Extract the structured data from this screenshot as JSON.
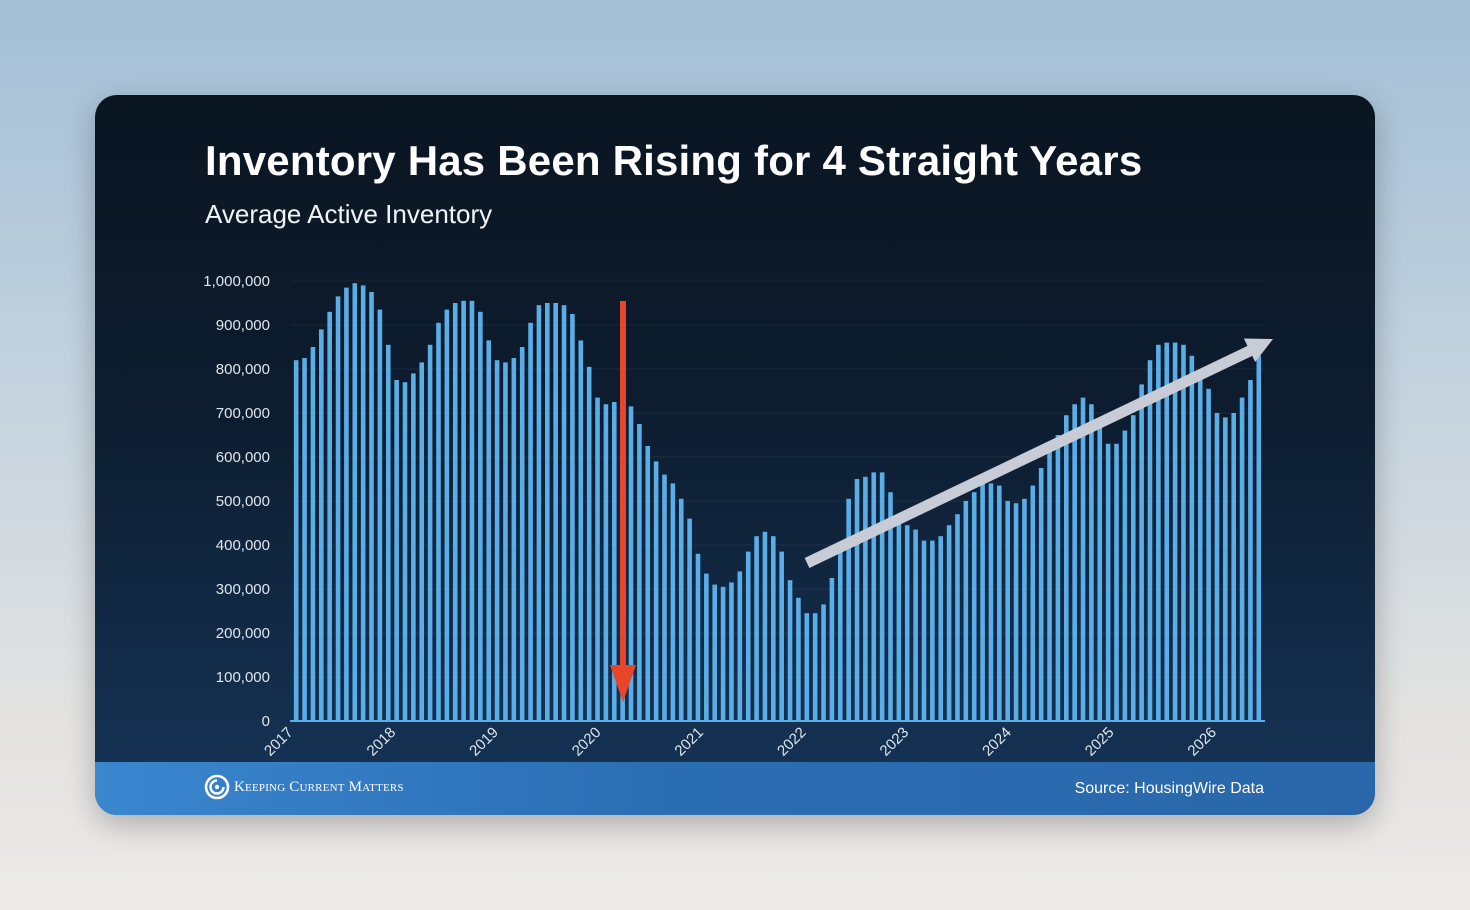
{
  "header": {
    "title": "Inventory Has Been Rising for 4 Straight Years",
    "subtitle": "Average Active Inventory"
  },
  "footer": {
    "brand": "Keeping Current Matters",
    "source": "Source: HousingWire Data"
  },
  "colors": {
    "bar": "#5aaee8",
    "down_arrow": "#e8452a",
    "up_arrow": "#c8ccd6",
    "axis_text": "#dfe6ee",
    "background": "#0d1d30",
    "footer": "#2b6db3"
  },
  "chart_data": {
    "type": "bar",
    "title": "Inventory Has Been Rising for 4 Straight Years",
    "subtitle": "Average Active Inventory",
    "xlabel": "",
    "ylabel": "",
    "ylim": [
      0,
      1000000
    ],
    "yticks": [
      0,
      100000,
      200000,
      300000,
      400000,
      500000,
      600000,
      700000,
      800000,
      900000,
      1000000
    ],
    "ytick_labels": [
      "0",
      "100,000",
      "200,000",
      "300,000",
      "400,000",
      "500,000",
      "600,000",
      "700,000",
      "800,000",
      "900,000",
      "1,000,000"
    ],
    "x_year_labels": [
      "2017",
      "2018",
      "2019",
      "2020",
      "2021",
      "2022",
      "2023",
      "2024",
      "2025",
      "2026"
    ],
    "grid": true,
    "frequency": "weekly",
    "values": [
      820000,
      825000,
      850000,
      890000,
      930000,
      965000,
      985000,
      995000,
      990000,
      975000,
      935000,
      855000,
      775000,
      770000,
      790000,
      815000,
      855000,
      905000,
      935000,
      950000,
      955000,
      955000,
      930000,
      865000,
      820000,
      815000,
      825000,
      850000,
      905000,
      945000,
      950000,
      950000,
      945000,
      925000,
      865000,
      805000,
      735000,
      720000,
      725000,
      740000,
      715000,
      675000,
      625000,
      590000,
      560000,
      540000,
      505000,
      460000,
      380000,
      335000,
      310000,
      305000,
      315000,
      340000,
      385000,
      420000,
      430000,
      420000,
      385000,
      320000,
      280000,
      245000,
      245000,
      265000,
      325000,
      395000,
      505000,
      550000,
      555000,
      565000,
      565000,
      520000,
      460000,
      445000,
      435000,
      410000,
      410000,
      420000,
      445000,
      470000,
      500000,
      520000,
      540000,
      540000,
      535000,
      500000,
      495000,
      505000,
      535000,
      575000,
      615000,
      650000,
      695000,
      720000,
      735000,
      720000,
      670000,
      630000,
      630000,
      660000,
      695000,
      765000,
      820000,
      855000,
      860000,
      860000,
      855000,
      830000,
      780000,
      755000,
      700000,
      690000,
      700000,
      735000,
      775000,
      830000
    ],
    "annotations": [
      {
        "type": "arrow",
        "direction": "down",
        "color": "#e8452a",
        "near_year": "2020"
      },
      {
        "type": "arrow",
        "direction": "up-right",
        "color": "#c8ccd6",
        "from_year": "2022",
        "to_year": "2026"
      }
    ]
  }
}
